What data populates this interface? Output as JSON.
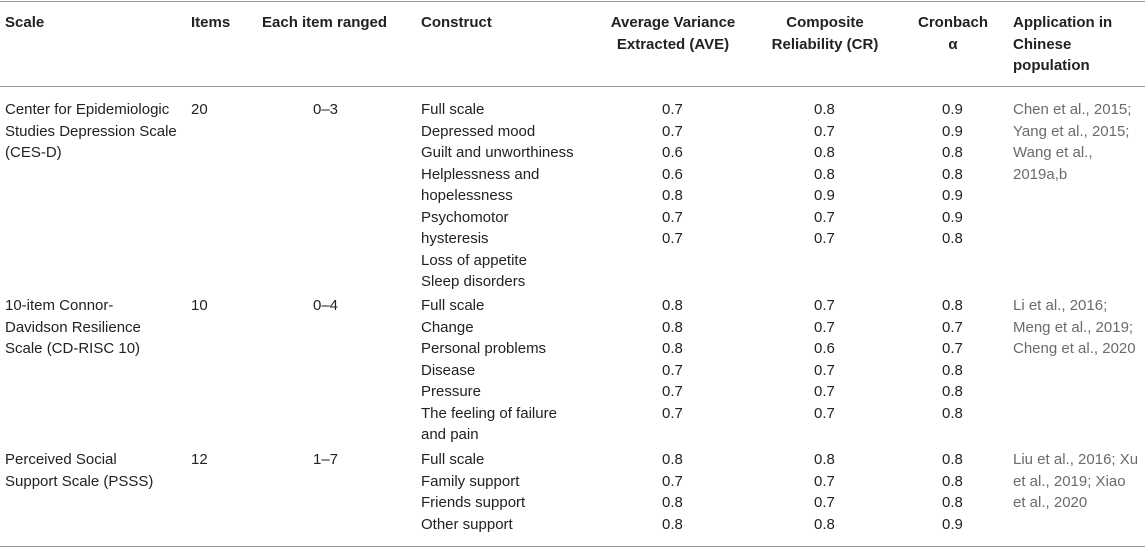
{
  "headers": {
    "scale": "Scale",
    "items": "Items",
    "range": "Each item ranged",
    "construct": "Construct",
    "ave": "Average Variance Extracted (AVE)",
    "cr": "Composite Reliability (CR)",
    "alpha": "Cronbach α",
    "application": "Application in Chinese population"
  },
  "groups": [
    {
      "scale": "Center for Epidemiologic Studies Depression Scale (CES-D)",
      "items": "20",
      "range": "0–3",
      "constructs": [
        "Full scale",
        "Depressed mood",
        "Guilt and unworthiness",
        "Helplessness and",
        "hopelessness",
        "Psychomotor",
        "hysteresis",
        "Loss of appetite",
        "Sleep disorders"
      ],
      "ave": [
        "0.7",
        "0.7",
        "0.6",
        "0.6",
        "0.8",
        "0.7",
        "0.7"
      ],
      "cr": [
        "0.8",
        "0.7",
        "0.8",
        "0.8",
        "0.9",
        "0.7",
        "0.7"
      ],
      "alpha": [
        "0.9",
        "0.9",
        "0.8",
        "0.8",
        "0.9",
        "0.9",
        "0.8"
      ],
      "application": "Chen et al., 2015; Yang et al., 2015; Wang et al., 2019a,b"
    },
    {
      "scale": "10-item Connor-Davidson Resilience Scale (CD-RISC 10)",
      "items": "10",
      "range": "0–4",
      "constructs": [
        "Full scale",
        "Change",
        "Personal problems",
        "Disease",
        "Pressure",
        "The feeling of failure",
        "and pain"
      ],
      "ave": [
        "0.8",
        "0.8",
        "0.8",
        "0.7",
        "0.7",
        "0.7"
      ],
      "cr": [
        "0.7",
        "0.7",
        "0.6",
        "0.7",
        "0.7",
        "0.7"
      ],
      "alpha": [
        "0.8",
        "0.7",
        "0.7",
        "0.8",
        "0.8",
        "0.8"
      ],
      "application": "Li et al., 2016; Meng et al., 2019; Cheng et al., 2020"
    },
    {
      "scale": "Perceived Social Support Scale (PSSS)",
      "items": "12",
      "range": "1–7",
      "constructs": [
        "Full scale",
        "Family support",
        "Friends support",
        "Other support"
      ],
      "ave": [
        "0.8",
        "0.7",
        "0.8",
        "0.8"
      ],
      "cr": [
        "0.8",
        "0.7",
        "0.7",
        "0.8"
      ],
      "alpha": [
        "0.8",
        "0.8",
        "0.8",
        "0.9"
      ],
      "application": "Liu et al., 2016; Xu et al., 2019; Xiao et al., 2020"
    }
  ]
}
